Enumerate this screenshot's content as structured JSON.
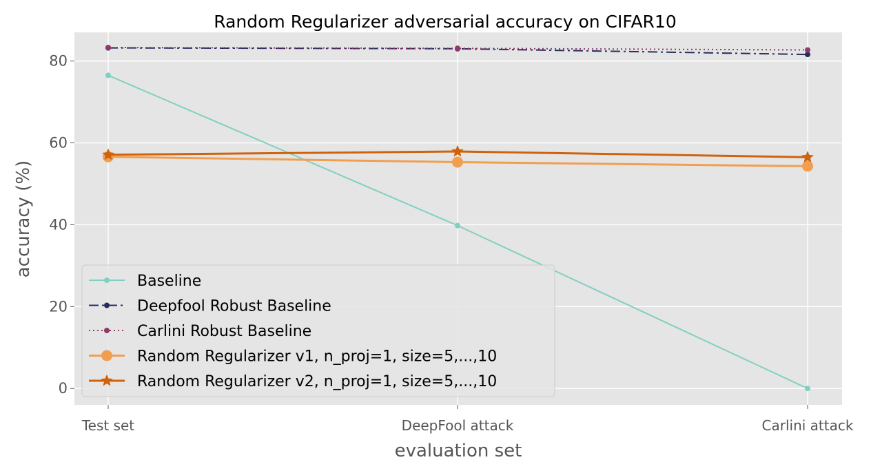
{
  "chart_data": {
    "type": "line",
    "title": "Random Regularizer adversarial accuracy on CIFAR10",
    "xlabel": "evaluation set",
    "ylabel": "accuracy (%)",
    "categories": [
      "Test set",
      "DeepFool attack",
      "Carlini attack"
    ],
    "ylim": [
      -4,
      87
    ],
    "yticks": [
      0,
      20,
      40,
      60,
      80
    ],
    "grid": true,
    "legend_position": "lower-left",
    "series": [
      {
        "name": "Baseline",
        "values": [
          76.5,
          39.8,
          0.0
        ],
        "color": "#80d0c0",
        "dash": "solid",
        "marker": "circle",
        "marker_size": "small",
        "line_weight": "thin"
      },
      {
        "name": "Deepfool Robust Baseline",
        "values": [
          83.2,
          83.0,
          81.6
        ],
        "color": "#252d5a",
        "dash": "dashdot",
        "marker": "circle",
        "marker_size": "small",
        "line_weight": "thin"
      },
      {
        "name": "Carlini Robust Baseline",
        "values": [
          83.3,
          83.1,
          82.7
        ],
        "color": "#8f3b6a",
        "dash": "dotted",
        "marker": "circle",
        "marker_size": "small",
        "line_weight": "thin"
      },
      {
        "name": "Random Regularizer v1, n_proj=1, size=5,...,10",
        "values": [
          56.6,
          55.3,
          54.3
        ],
        "color": "#f29e4f",
        "dash": "solid",
        "marker": "circle",
        "marker_size": "large",
        "line_weight": "thick"
      },
      {
        "name": "Random Regularizer v2, n_proj=1, size=5,...,10",
        "values": [
          57.1,
          57.9,
          56.5
        ],
        "color": "#d0620c",
        "dash": "solid",
        "marker": "star",
        "marker_size": "medium",
        "line_weight": "thick"
      }
    ]
  }
}
